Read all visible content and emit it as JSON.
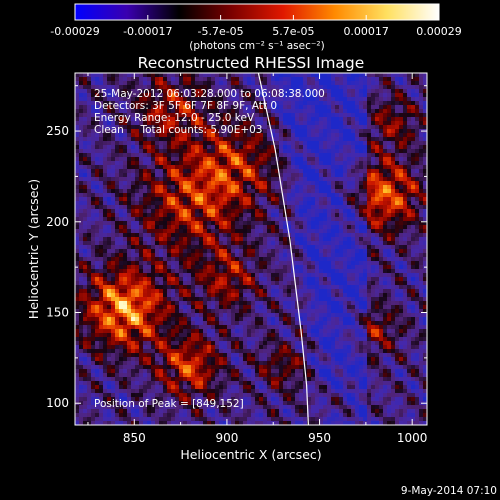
{
  "colorbar": {
    "tick_labels": [
      "-0.00029",
      "-0.00017",
      "-5.7e-05",
      "5.7e-05",
      "0.00017",
      "0.00029"
    ],
    "unit_text": "(photons cm⁻² s⁻¹ asec⁻²)",
    "range": [
      -0.00029,
      0.00029
    ],
    "colors": [
      "#0000ff",
      "#3a00b0",
      "#000000",
      "#7a0000",
      "#e01800",
      "#ff8a00",
      "#ffe060",
      "#ffffff"
    ]
  },
  "chart_data": {
    "type": "heatmap",
    "title": "Reconstructed RHESSI Image",
    "xlabel": "Heliocentric X (arcsec)",
    "ylabel": "Heliocentric Y (arcsec)",
    "xlim": [
      818,
      1008
    ],
    "ylim": [
      88,
      282
    ],
    "x_ticks": [
      850,
      900,
      950,
      1000
    ],
    "y_ticks": [
      100,
      150,
      200,
      250
    ],
    "x_tick_labels": [
      "850",
      "900",
      "950",
      "1000"
    ],
    "y_tick_labels": [
      "100",
      "150",
      "200",
      "250"
    ],
    "annotations": [
      "25-May-2012 06:03:28.000 to 06:08:38.000",
      "Detectors: 3F 5F 6F 7F 8F 9F, Att 0",
      "Energy Range: 12.0 - 25.0 keV",
      "Clean     Total counts: 5.90E+03"
    ],
    "peak_label": "Position of Peak = [849,152]",
    "peak": [
      849,
      152
    ],
    "limb": [
      [
        917,
        282
      ],
      [
        926,
        240
      ],
      [
        934,
        190
      ],
      [
        940,
        140
      ],
      [
        943,
        110
      ],
      [
        944,
        88
      ]
    ]
  },
  "footer": {
    "timestamp": "9-May-2014 07:10"
  }
}
